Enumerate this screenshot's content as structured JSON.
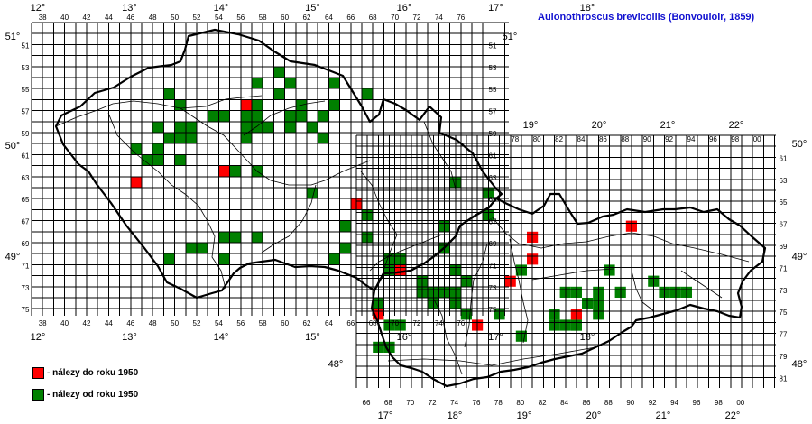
{
  "title": "Aulonothroscus brevicollis (Bonvouloir, 1859)",
  "legend": {
    "before": {
      "label": "- nálezy do roku 1950",
      "color": "#ff0000"
    },
    "after": {
      "label": "- nálezy od roku 1950",
      "color": "#008000"
    }
  },
  "colors": {
    "grid": "#000000",
    "border": "#000000",
    "river": "#000000",
    "red": "#ff0000",
    "green": "#008000"
  },
  "cz_columns": [
    "38",
    "40",
    "42",
    "44",
    "46",
    "48",
    "50",
    "52",
    "54",
    "56",
    "58",
    "60",
    "62",
    "64",
    "66",
    "68",
    "70",
    "72",
    "74",
    "76"
  ],
  "cz_rows": [
    "51",
    "53",
    "55",
    "57",
    "59",
    "61",
    "63",
    "65",
    "67",
    "69",
    "71",
    "73",
    "75"
  ],
  "cz_longitudes": [
    "12°",
    "13°",
    "14°",
    "15°",
    "16°",
    "17°",
    "18°"
  ],
  "cz_latitudes": [
    "51°",
    "50°",
    "49°"
  ],
  "sk_columns_top": [
    "78",
    "80",
    "82",
    "84",
    "86",
    "88",
    "90",
    "92",
    "94",
    "96",
    "98",
    "00"
  ],
  "sk_columns_bottom": [
    "66",
    "68",
    "70",
    "72",
    "74",
    "76",
    "78",
    "80",
    "82",
    "84",
    "86",
    "88",
    "90",
    "92",
    "94",
    "96",
    "98",
    "00"
  ],
  "sk_rows": [
    "61",
    "63",
    "65",
    "67",
    "69",
    "71",
    "73",
    "75",
    "77",
    "79",
    "81"
  ],
  "sk_longitudes_top": [
    "19°",
    "20°",
    "21°",
    "22°"
  ],
  "sk_longitudes_bottom": [
    "17°",
    "18°",
    "19°",
    "20°",
    "21°",
    "22°"
  ],
  "sk_latitudes": [
    "50°",
    "49°",
    "48°"
  ],
  "records": {
    "before_1950": [
      "5657",
      "6666",
      "5463",
      "4664",
      "7072",
      "9168",
      "8269",
      "8271",
      "8073",
      "6876",
      "7777",
      "8676"
    ],
    "after_1950": [
      "4956",
      "5057",
      "4859",
      "4960",
      "5060",
      "5160",
      "5059",
      "5159",
      "5358",
      "5458",
      "5658",
      "5659",
      "5859",
      "5759",
      "5758",
      "5757",
      "5956",
      "6058",
      "6059",
      "6158",
      "6157",
      "6059",
      "6358",
      "6259",
      "6360",
      "6457",
      "6455",
      "5755",
      "5954",
      "6055",
      "6756",
      "5763",
      "4762",
      "4661",
      "4861",
      "5062",
      "4862",
      "5660",
      "5563",
      "5569",
      "5469",
      "5270",
      "5170",
      "4971",
      "5471",
      "6265",
      "6767",
      "6568",
      "5769",
      "6471",
      "6570",
      "6972",
      "7071",
      "6769",
      "6971",
      "7470",
      "7574",
      "7673",
      "7474",
      "7375",
      "7564",
      "7865",
      "7867",
      "7468",
      "7572",
      "7273",
      "8178",
      "8477",
      "8677",
      "8876",
      "8775",
      "8574",
      "8674",
      "8577",
      "8677",
      "6876",
      "6875",
      "6977",
      "7077",
      "6979",
      "6879",
      "8972",
      "9074",
      "9574",
      "9674",
      "9474",
      "9373",
      "8172",
      "8476",
      "7676",
      "7274",
      "7374",
      "7575",
      "8874",
      "8875",
      "7976"
    ]
  }
}
